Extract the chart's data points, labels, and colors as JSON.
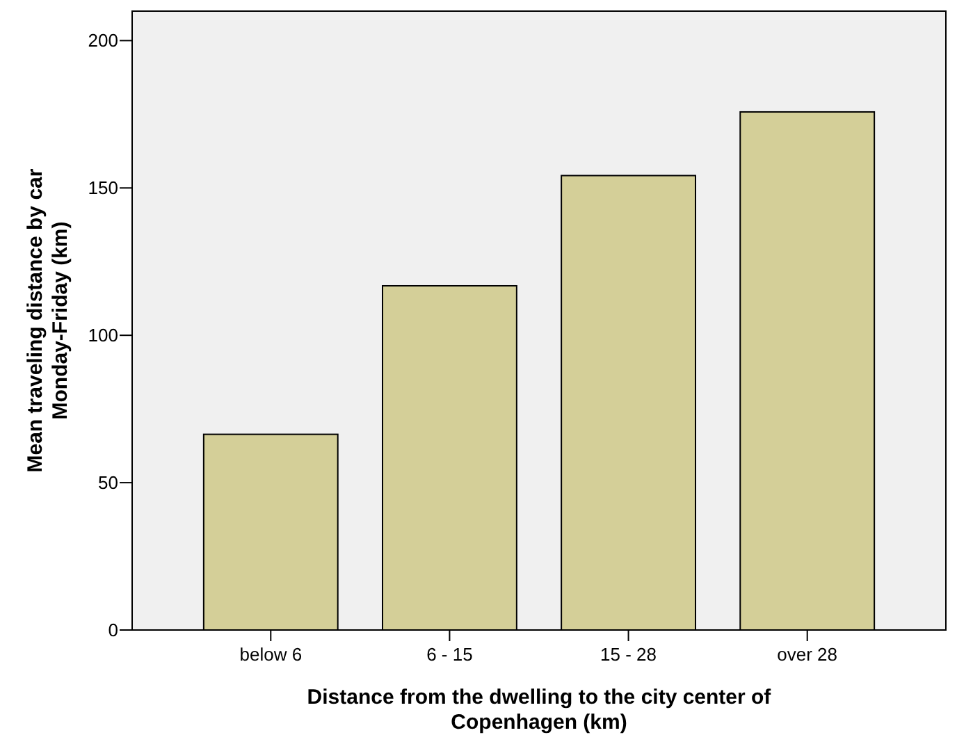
{
  "chart_data": {
    "type": "bar",
    "xlabel": "Distance from the dwelling to the city center of Copenhagen (km)",
    "ylabel": "Mean traveling distance by car Monday-Friday (km)",
    "categories": [
      "below 6",
      "6 - 15",
      "15 - 28",
      "over 28"
    ],
    "values": [
      66.4,
      116.8,
      154.2,
      175.8
    ],
    "color": "#d4cf98",
    "ylim": [
      0,
      210
    ],
    "yticks": [
      0,
      50,
      100,
      150,
      200
    ],
    "grid": false
  }
}
